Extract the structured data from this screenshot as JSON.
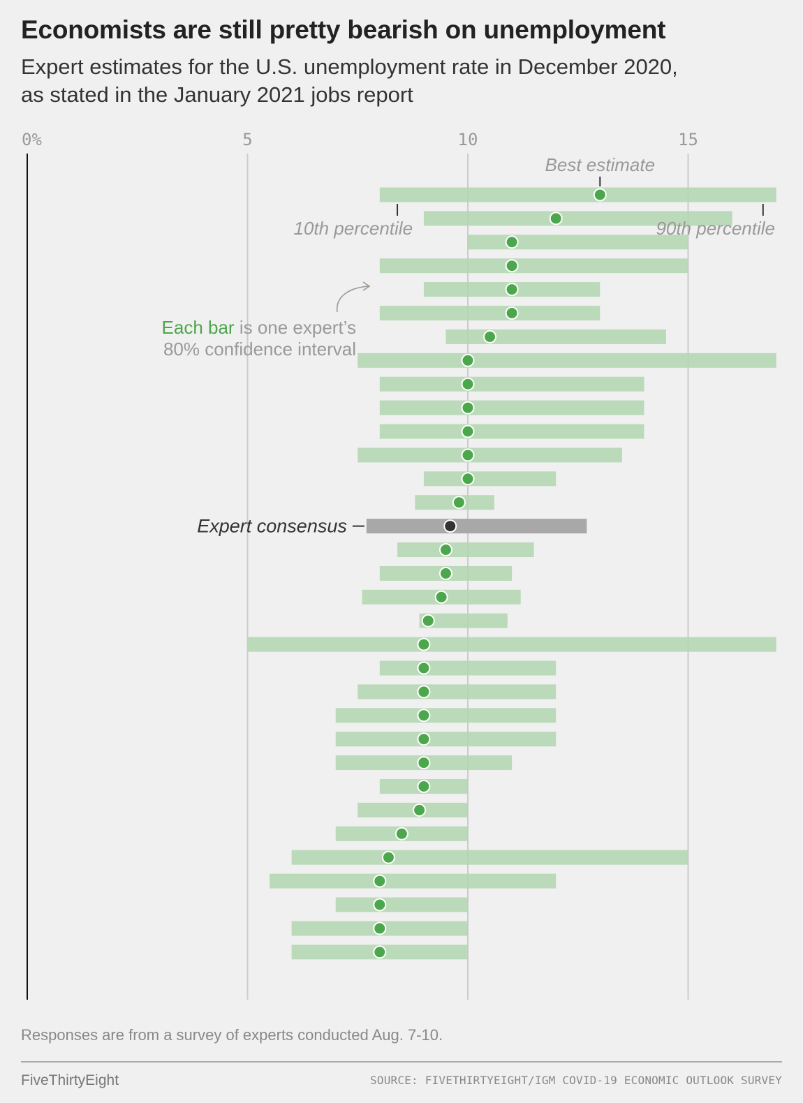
{
  "title": "Economists are still pretty bearish on unemployment",
  "subtitle_line1": "Expert estimates for the U.S. unemployment rate in December 2020,",
  "subtitle_line2": "as stated in the January 2021 jobs report",
  "note": "Responses are from a survey of experts conducted Aug. 7-10.",
  "brand": "FiveThirtyEight",
  "source": "SOURCE: FIVETHIRTYEIGHT/IGM COVID-19 ECONOMIC OUTLOOK SURVEY",
  "colors": {
    "bar": "#b2d6b0",
    "dot": "#4ca64c",
    "consensus_bar": "#a8a8a8",
    "consensus_dot": "#333333",
    "grid": "#cccccc",
    "annotation": "#999999",
    "highlight_green": "#4ca64c"
  },
  "annotations": {
    "best_estimate": "Best estimate",
    "p10": "10th percentile",
    "p90": "90th percentile",
    "each_bar_green": "Each bar",
    "each_bar_rest": " is one expert’s",
    "each_bar_line2": "80% confidence interval",
    "consensus": "Expert consensus"
  },
  "chart_data": {
    "type": "range",
    "xlim": [
      0,
      17
    ],
    "ticks": [
      {
        "value": 0,
        "label": "0%"
      },
      {
        "value": 5,
        "label": "5"
      },
      {
        "value": 10,
        "label": "10"
      },
      {
        "value": 15,
        "label": "15"
      }
    ],
    "rows": [
      {
        "low": 8,
        "high": 17,
        "best": 13
      },
      {
        "low": 9,
        "high": 16,
        "best": 12
      },
      {
        "low": 10,
        "high": 15,
        "best": 11
      },
      {
        "low": 8,
        "high": 15,
        "best": 11
      },
      {
        "low": 9,
        "high": 13,
        "best": 11
      },
      {
        "low": 8,
        "high": 13,
        "best": 11
      },
      {
        "low": 9.5,
        "high": 14.5,
        "best": 10.5
      },
      {
        "low": 7.5,
        "high": 17,
        "best": 10
      },
      {
        "low": 8,
        "high": 14,
        "best": 10
      },
      {
        "low": 8,
        "high": 14,
        "best": 10
      },
      {
        "low": 8,
        "high": 14,
        "best": 10
      },
      {
        "low": 7.5,
        "high": 13.5,
        "best": 10
      },
      {
        "low": 9,
        "high": 12,
        "best": 10
      },
      {
        "low": 8.8,
        "high": 10.6,
        "best": 9.8
      },
      {
        "low": 7.7,
        "high": 12.7,
        "best": 9.6,
        "consensus": true
      },
      {
        "low": 8.4,
        "high": 11.5,
        "best": 9.5
      },
      {
        "low": 8,
        "high": 11,
        "best": 9.5
      },
      {
        "low": 7.6,
        "high": 11.2,
        "best": 9.4
      },
      {
        "low": 8.9,
        "high": 10.9,
        "best": 9.1
      },
      {
        "low": 5,
        "high": 17,
        "best": 9
      },
      {
        "low": 8,
        "high": 12,
        "best": 9
      },
      {
        "low": 7.5,
        "high": 12,
        "best": 9
      },
      {
        "low": 7,
        "high": 12,
        "best": 9
      },
      {
        "low": 7,
        "high": 12,
        "best": 9
      },
      {
        "low": 7,
        "high": 11,
        "best": 9
      },
      {
        "low": 8,
        "high": 10,
        "best": 9
      },
      {
        "low": 7.5,
        "high": 10,
        "best": 8.9
      },
      {
        "low": 7,
        "high": 10,
        "best": 8.5
      },
      {
        "low": 6,
        "high": 15,
        "best": 8.2
      },
      {
        "low": 5.5,
        "high": 12,
        "best": 8
      },
      {
        "low": 7,
        "high": 10,
        "best": 8
      },
      {
        "low": 6,
        "high": 10,
        "best": 8
      },
      {
        "low": 6,
        "high": 10,
        "best": 8
      }
    ]
  }
}
